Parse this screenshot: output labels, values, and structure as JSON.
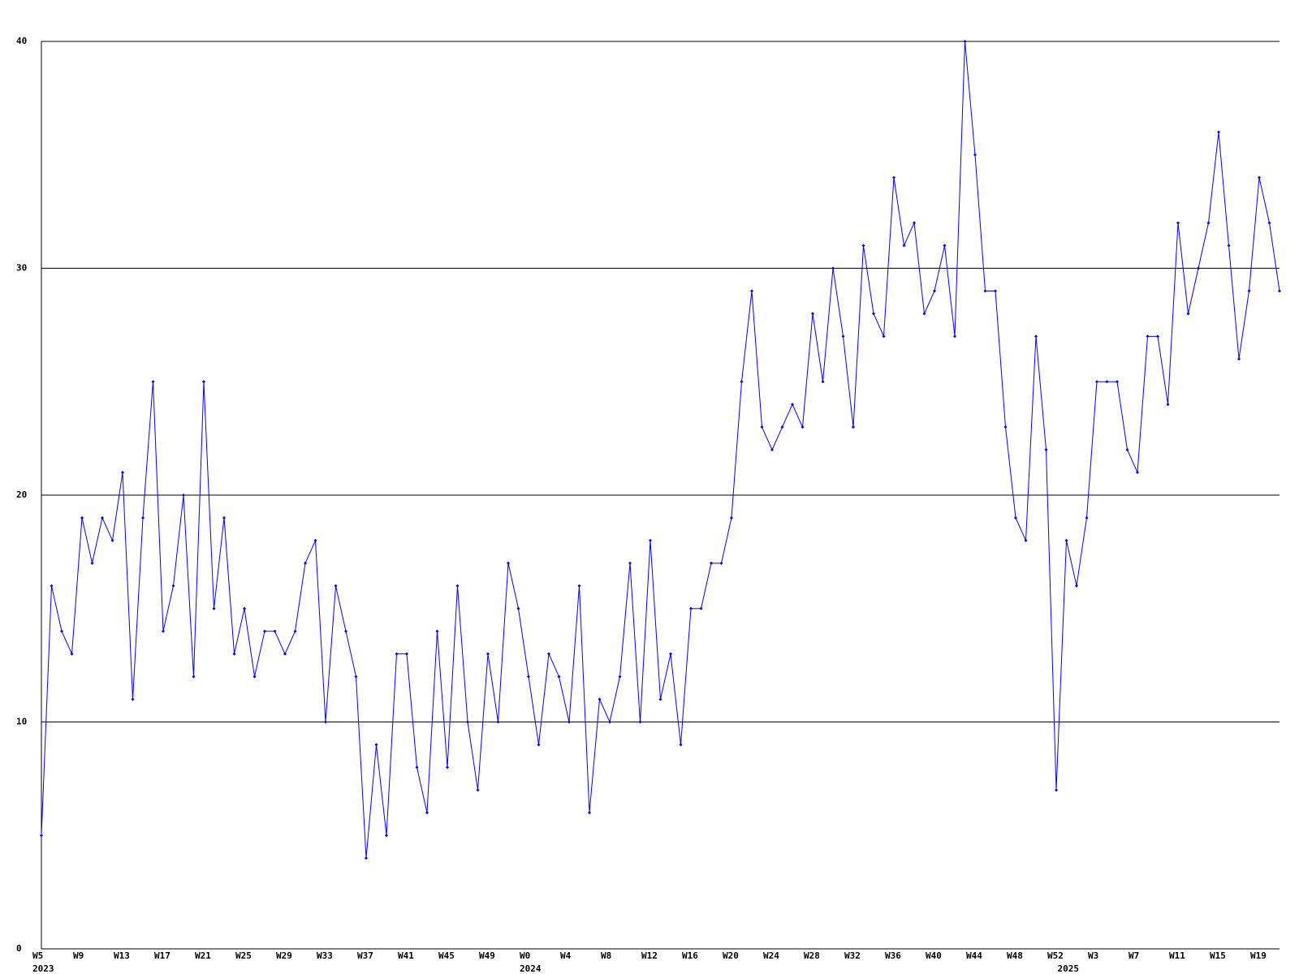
{
  "chart_data": {
    "type": "line",
    "categories": [
      "W5",
      null,
      null,
      null,
      "W9",
      null,
      null,
      null,
      "W13",
      null,
      null,
      null,
      "W17",
      null,
      null,
      null,
      "W21",
      null,
      null,
      null,
      "W25",
      null,
      null,
      null,
      "W29",
      null,
      null,
      null,
      "W33",
      null,
      null,
      null,
      "W37",
      null,
      null,
      null,
      "W41",
      null,
      null,
      null,
      "W45",
      null,
      null,
      null,
      "W49",
      null,
      null,
      null,
      "W0",
      null,
      null,
      null,
      "W4",
      null,
      null,
      null,
      "W8",
      null,
      null,
      null,
      "W12",
      null,
      null,
      null,
      "W16",
      null,
      null,
      null,
      "W20",
      null,
      null,
      null,
      "W24",
      null,
      null,
      null,
      "W28",
      null,
      null,
      null,
      "W32",
      null,
      null,
      null,
      "W36",
      null,
      null,
      null,
      "W40",
      null,
      null,
      null,
      "W44",
      null,
      null,
      null,
      "W48",
      null,
      null,
      null,
      "W52",
      null,
      null,
      null,
      "W3",
      null,
      null,
      null,
      "W7",
      null,
      null,
      null,
      "W11",
      null,
      null,
      null,
      "W15",
      null,
      null,
      null,
      "W19",
      null,
      null
    ],
    "category_years": [
      "2023",
      null,
      null,
      null,
      null,
      null,
      null,
      null,
      null,
      null,
      null,
      null,
      null,
      null,
      null,
      null,
      null,
      null,
      null,
      null,
      null,
      null,
      null,
      null,
      null,
      null,
      null,
      null,
      null,
      null,
      null,
      null,
      null,
      null,
      null,
      null,
      null,
      null,
      null,
      null,
      null,
      null,
      null,
      null,
      null,
      null,
      null,
      null,
      "2024",
      null,
      null,
      null,
      null,
      null,
      null,
      null,
      null,
      null,
      null,
      null,
      null,
      null,
      null,
      null,
      null,
      null,
      null,
      null,
      null,
      null,
      null,
      null,
      null,
      null,
      null,
      null,
      null,
      null,
      null,
      null,
      null,
      null,
      null,
      null,
      null,
      null,
      null,
      null,
      null,
      null,
      null,
      null,
      null,
      null,
      null,
      null,
      null,
      null,
      null,
      null,
      null,
      "2025",
      null,
      null,
      null,
      null,
      null,
      null,
      null,
      null,
      null,
      null,
      null,
      null,
      null,
      null,
      null,
      null,
      null,
      null,
      null,
      null,
      null
    ],
    "series": [
      {
        "color": "#0000ff",
        "values": [
          5,
          16,
          14,
          13,
          19,
          17,
          19,
          18,
          21,
          11,
          19,
          25,
          14,
          16,
          20,
          12,
          25,
          15,
          19,
          13,
          15,
          12,
          14,
          14,
          13,
          14,
          17,
          18,
          10,
          16,
          14,
          12,
          4,
          9,
          5,
          13,
          13,
          8,
          6,
          14,
          8,
          16,
          10,
          7,
          13,
          10,
          17,
          15,
          12,
          9,
          13,
          12,
          10,
          16,
          6,
          11,
          10,
          12,
          17,
          10,
          18,
          11,
          13,
          9,
          15,
          15,
          17,
          17,
          19,
          25,
          29,
          23,
          22,
          23,
          24,
          23,
          28,
          25,
          30,
          27,
          23,
          31,
          28,
          27,
          34,
          31,
          32,
          28,
          29,
          31,
          27,
          40,
          35,
          29,
          29,
          23,
          19,
          18,
          27,
          22,
          7,
          18,
          16,
          19,
          25,
          25,
          25,
          22,
          21,
          27,
          27,
          24,
          32,
          28,
          30,
          32,
          36,
          31,
          26,
          29,
          34,
          32,
          29
        ]
      }
    ],
    "ylim": [
      0,
      40
    ],
    "yticks": [
      0,
      10,
      20,
      30,
      40
    ],
    "grid": true
  }
}
